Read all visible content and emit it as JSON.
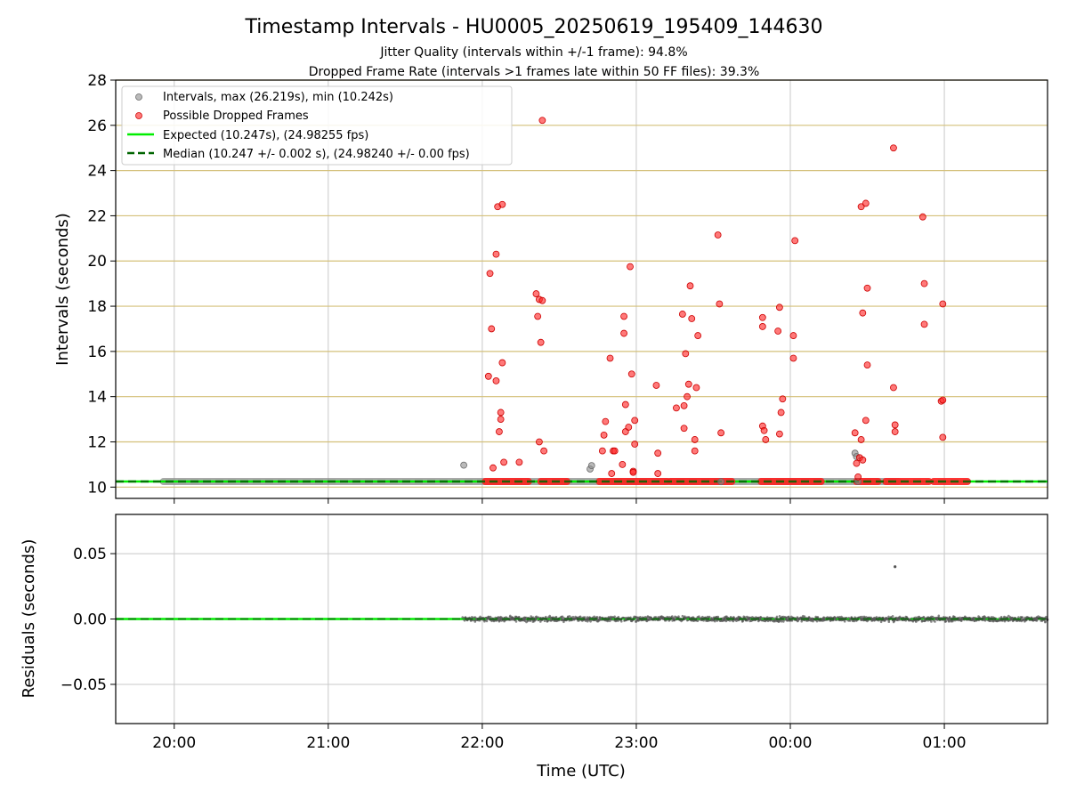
{
  "chart_data": {
    "type": "scatter",
    "title": "Timestamp Intervals - HU0005_20250619_195409_144630",
    "subtitle1": "Jitter Quality (intervals within +/-1 frame): 94.8%",
    "subtitle2": "Dropped Frame Rate (intervals >1 frames late within 50 FF files): 39.3%",
    "xlabel": "Time (UTC)",
    "x_ticks": [
      "20:00",
      "21:00",
      "22:00",
      "23:00",
      "00:00",
      "01:00"
    ],
    "top": {
      "ylabel": "Intervals (seconds)",
      "ylim": [
        9.5,
        28
      ],
      "y_ticks": [
        "10",
        "12",
        "14",
        "16",
        "18",
        "20",
        "22",
        "24",
        "26",
        "28"
      ],
      "legend_position": "top-left",
      "legend": [
        "Intervals, max (26.219s), min (10.242s)",
        "Possible Dropped Frames",
        "Expected (10.247s), (24.98255 fps)",
        "Median (10.247 +/- 0.002 s), (24.98240 +/- 0.00 fps)"
      ],
      "expected_interval": 10.247,
      "median_interval": 10.247,
      "normal_intervals": [
        [
          21.88,
          10.97
        ],
        [
          22.7,
          10.8
        ],
        [
          22.71,
          10.95
        ],
        [
          23.55,
          10.24
        ],
        [
          0.42,
          11.5
        ],
        [
          0.43,
          11.35
        ],
        [
          0.44,
          10.25
        ]
      ],
      "dropped_frames": [
        [
          22.04,
          14.9
        ],
        [
          22.05,
          19.45
        ],
        [
          22.06,
          17.0
        ],
        [
          22.07,
          10.85
        ],
        [
          22.09,
          20.3
        ],
        [
          22.09,
          14.7
        ],
        [
          22.1,
          22.4
        ],
        [
          22.11,
          12.45
        ],
        [
          22.12,
          13.3
        ],
        [
          22.12,
          13.0
        ],
        [
          22.13,
          22.5
        ],
        [
          22.13,
          15.5
        ],
        [
          22.14,
          11.1
        ],
        [
          22.24,
          11.1
        ],
        [
          22.35,
          18.55
        ],
        [
          22.36,
          17.55
        ],
        [
          22.37,
          18.3
        ],
        [
          22.37,
          12.0
        ],
        [
          22.38,
          16.4
        ],
        [
          22.39,
          26.22
        ],
        [
          22.39,
          18.25
        ],
        [
          22.4,
          11.6
        ],
        [
          22.78,
          11.6
        ],
        [
          22.79,
          12.3
        ],
        [
          22.8,
          12.9
        ],
        [
          22.83,
          15.7
        ],
        [
          22.84,
          10.6
        ],
        [
          22.85,
          11.6
        ],
        [
          22.86,
          11.6
        ],
        [
          22.91,
          11.0
        ],
        [
          22.92,
          16.8
        ],
        [
          22.92,
          17.55
        ],
        [
          22.93,
          13.65
        ],
        [
          22.93,
          12.45
        ],
        [
          22.95,
          12.65
        ],
        [
          22.96,
          19.75
        ],
        [
          22.97,
          15.0
        ],
        [
          22.98,
          10.7
        ],
        [
          22.98,
          10.65
        ],
        [
          22.99,
          11.9
        ],
        [
          22.99,
          12.95
        ],
        [
          23.13,
          14.5
        ],
        [
          23.14,
          11.5
        ],
        [
          23.14,
          10.6
        ],
        [
          23.26,
          13.5
        ],
        [
          23.3,
          17.65
        ],
        [
          23.31,
          12.6
        ],
        [
          23.31,
          13.6
        ],
        [
          23.32,
          15.9
        ],
        [
          23.33,
          14.0
        ],
        [
          23.34,
          14.55
        ],
        [
          23.35,
          18.9
        ],
        [
          23.36,
          17.45
        ],
        [
          23.38,
          11.6
        ],
        [
          23.38,
          12.1
        ],
        [
          23.39,
          14.4
        ],
        [
          23.4,
          16.7
        ],
        [
          23.53,
          21.15
        ],
        [
          23.54,
          18.1
        ],
        [
          23.55,
          12.4
        ],
        [
          23.82,
          12.7
        ],
        [
          23.82,
          17.1
        ],
        [
          23.82,
          17.5
        ],
        [
          23.83,
          12.5
        ],
        [
          23.84,
          12.1
        ],
        [
          23.92,
          16.9
        ],
        [
          23.93,
          17.95
        ],
        [
          23.93,
          12.35
        ],
        [
          23.94,
          13.3
        ],
        [
          23.95,
          13.9
        ],
        [
          0.02,
          16.7
        ],
        [
          0.02,
          15.7
        ],
        [
          0.03,
          20.9
        ],
        [
          0.42,
          12.4
        ],
        [
          0.43,
          11.05
        ],
        [
          0.44,
          10.45
        ],
        [
          0.45,
          11.3
        ],
        [
          0.46,
          22.4
        ],
        [
          0.46,
          12.1
        ],
        [
          0.47,
          17.7
        ],
        [
          0.47,
          11.2
        ],
        [
          0.49,
          22.55
        ],
        [
          0.49,
          12.95
        ],
        [
          0.5,
          18.8
        ],
        [
          0.5,
          15.4
        ],
        [
          0.67,
          25.0
        ],
        [
          0.67,
          14.4
        ],
        [
          0.68,
          12.75
        ],
        [
          0.68,
          12.45
        ],
        [
          0.86,
          21.95
        ],
        [
          0.87,
          17.2
        ],
        [
          0.87,
          19.0
        ],
        [
          0.98,
          13.8
        ],
        [
          0.99,
          13.85
        ],
        [
          0.99,
          18.1
        ],
        [
          0.99,
          12.2
        ]
      ],
      "dropped_baseline_ranges": [
        [
          22.02,
          22.3
        ],
        [
          22.38,
          22.55
        ],
        [
          22.76,
          23.2
        ],
        [
          23.22,
          23.62
        ],
        [
          23.81,
          24.2
        ],
        [
          0.43,
          0.57
        ],
        [
          0.62,
          0.9
        ],
        [
          0.93,
          1.15
        ]
      ],
      "normal_baseline_range": [
        19.93,
        24.7
      ]
    },
    "bottom": {
      "ylabel": "Residuals (seconds)",
      "ylim": [
        -0.08,
        0.08
      ],
      "y_ticks": [
        "0.05",
        "0.00",
        "−0.05"
      ],
      "line_range": [
        19.62,
        21.87
      ],
      "scatter_range": [
        21.87,
        1.67
      ],
      "outlier": [
        0.68,
        0.04
      ]
    }
  },
  "colors": {
    "normal": "#8c8c8c",
    "dropped": "#ff2020",
    "expected": "#00ee00",
    "median": "#006400",
    "hgrid": "#d4c07a",
    "vgrid": "#c8c8c8",
    "residual": "#555555"
  }
}
